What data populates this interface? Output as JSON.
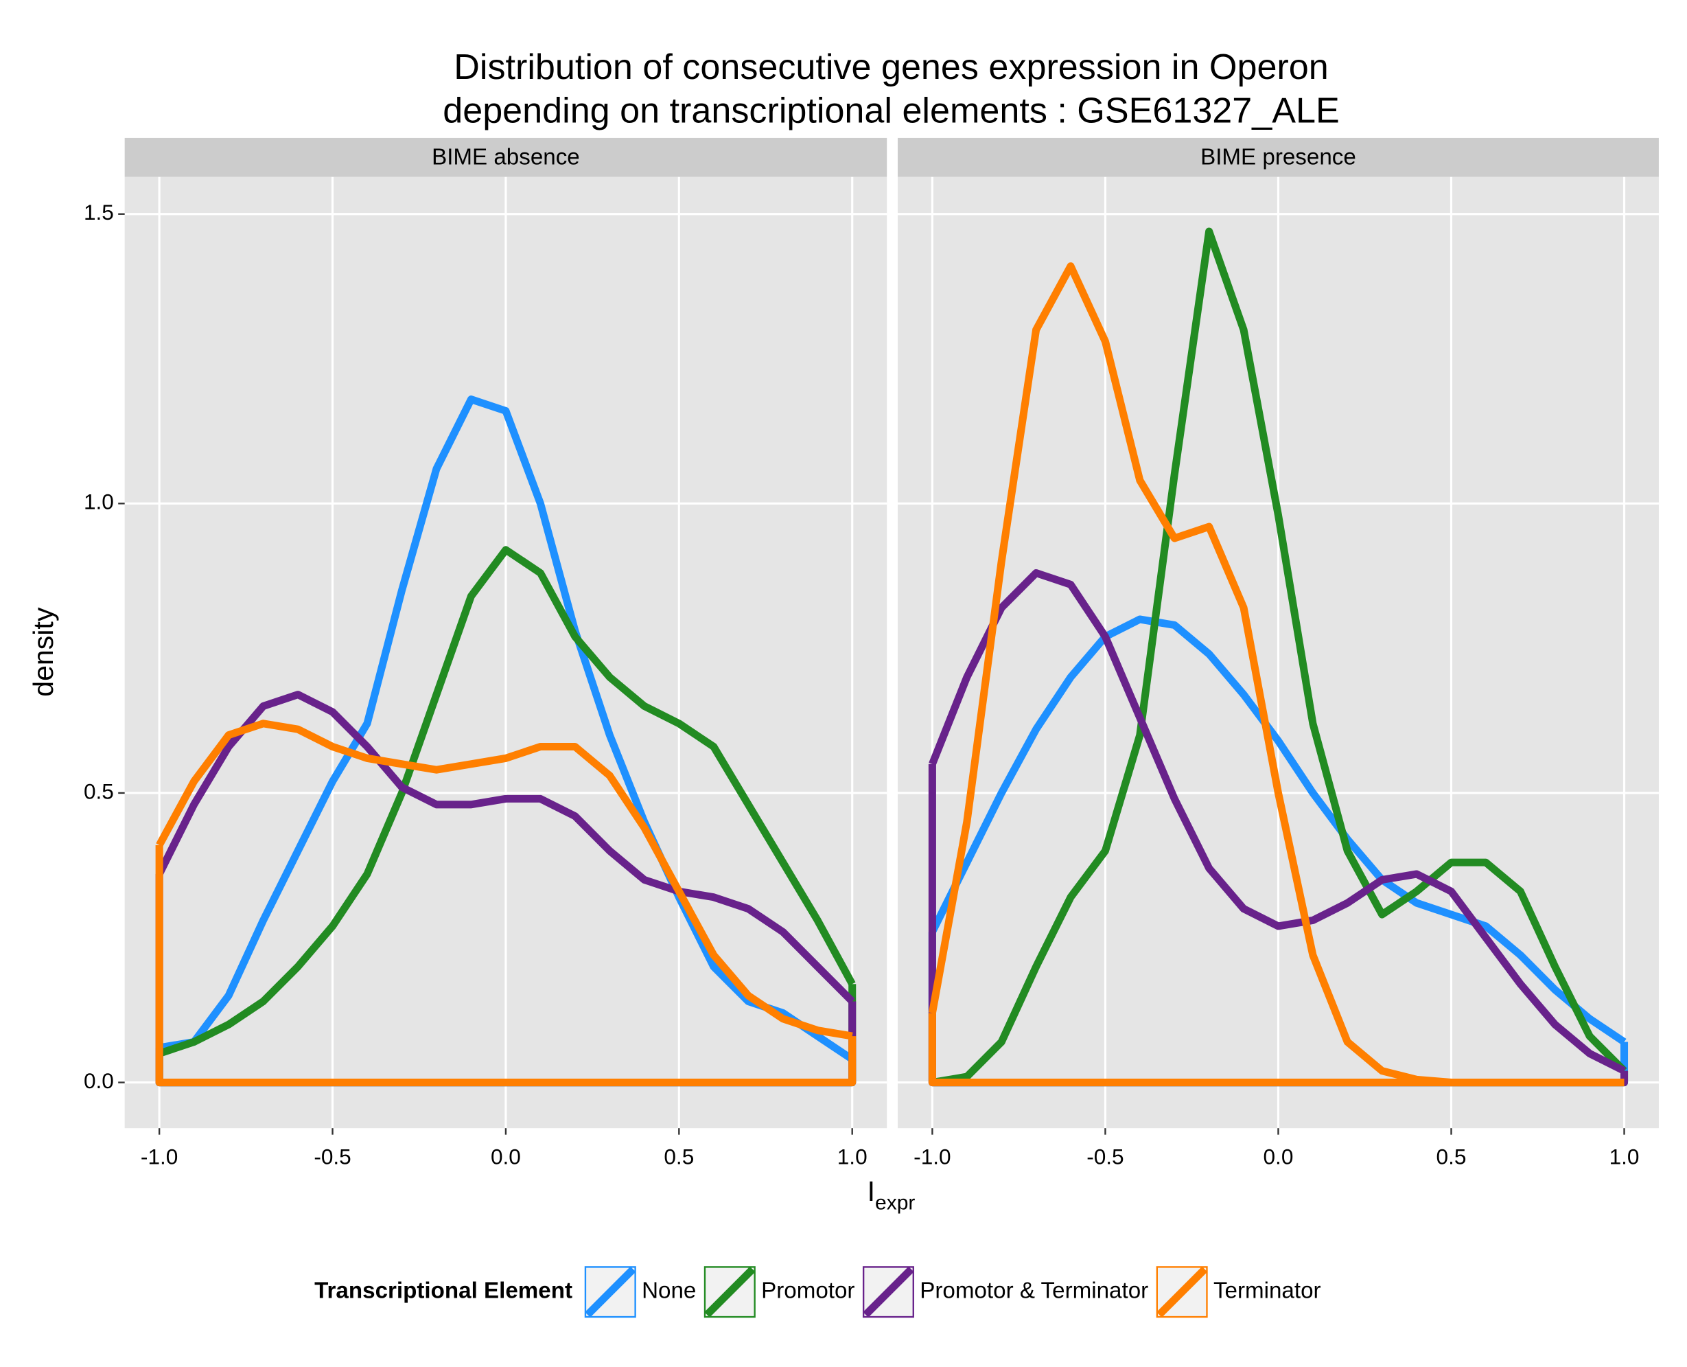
{
  "title": [
    "Distribution of consecutive genes expression in Operon",
    "depending on transcriptional elements : GSE61327_ALE"
  ],
  "x_label": "I",
  "x_label_subscript": "expr",
  "y_label": "density",
  "legend_title": "Transcriptional Element",
  "legend_position": "bottom",
  "chart_data": [
    {
      "type": "density",
      "title": "BIME absence",
      "x": [
        -1,
        -0.9,
        -0.8,
        -0.7,
        -0.6,
        -0.5,
        -0.4,
        -0.3,
        -0.2,
        -0.1,
        0,
        0.1,
        0.2,
        0.3,
        0.4,
        0.5,
        0.6,
        0.7,
        0.8,
        0.9,
        1
      ],
      "xlim": [
        -1.1,
        1.1
      ],
      "ylim": [
        -0.079,
        1.564
      ],
      "grid": true,
      "xticks": [
        {
          "value": -1,
          "label": "-1.0"
        },
        {
          "value": -0.5,
          "label": "-0.5"
        },
        {
          "value": 0,
          "label": "0.0"
        },
        {
          "value": 0.5,
          "label": "0.5"
        },
        {
          "value": 1,
          "label": "1.0"
        }
      ],
      "yticks": [
        {
          "value": 0,
          "label": "0.0"
        },
        {
          "value": 0.5,
          "label": "0.5"
        },
        {
          "value": 1,
          "label": "1.0"
        },
        {
          "value": 1.5,
          "label": "1.5"
        }
      ],
      "series": [
        {
          "name": "None",
          "color": "#1e90ff",
          "values": [
            0.06,
            0.07,
            0.15,
            0.28,
            0.4,
            0.52,
            0.62,
            0.85,
            1.06,
            1.18,
            1.16,
            1.0,
            0.78,
            0.6,
            0.45,
            0.32,
            0.2,
            0.14,
            0.12,
            0.08,
            0.04
          ]
        },
        {
          "name": "Promotor",
          "color": "#228b22",
          "values": [
            0.05,
            0.07,
            0.1,
            0.14,
            0.2,
            0.27,
            0.36,
            0.5,
            0.67,
            0.84,
            0.92,
            0.88,
            0.77,
            0.7,
            0.65,
            0.62,
            0.58,
            0.48,
            0.38,
            0.28,
            0.17
          ]
        },
        {
          "name": "Promotor & Terminator",
          "color": "#68228b",
          "values": [
            0.36,
            0.48,
            0.58,
            0.65,
            0.67,
            0.64,
            0.58,
            0.51,
            0.48,
            0.48,
            0.49,
            0.49,
            0.46,
            0.4,
            0.35,
            0.33,
            0.32,
            0.3,
            0.26,
            0.2,
            0.14
          ]
        },
        {
          "name": "Terminator",
          "color": "#ff7f00",
          "values": [
            0.41,
            0.52,
            0.6,
            0.62,
            0.61,
            0.58,
            0.56,
            0.55,
            0.54,
            0.55,
            0.56,
            0.58,
            0.58,
            0.53,
            0.44,
            0.33,
            0.22,
            0.15,
            0.11,
            0.09,
            0.08
          ]
        }
      ]
    },
    {
      "type": "density",
      "title": "BIME presence",
      "x": [
        -1,
        -0.9,
        -0.8,
        -0.7,
        -0.6,
        -0.5,
        -0.4,
        -0.3,
        -0.2,
        -0.1,
        0,
        0.1,
        0.2,
        0.3,
        0.4,
        0.5,
        0.6,
        0.7,
        0.8,
        0.9,
        1
      ],
      "xlim": [
        -1.1,
        1.1
      ],
      "ylim": [
        -0.079,
        1.564
      ],
      "grid": true,
      "xticks": [
        {
          "value": -1,
          "label": "-1.0"
        },
        {
          "value": -0.5,
          "label": "-0.5"
        },
        {
          "value": 0,
          "label": "0.0"
        },
        {
          "value": 0.5,
          "label": "0.5"
        },
        {
          "value": 1,
          "label": "1.0"
        }
      ],
      "yticks": [
        0,
        0.5,
        1,
        1.5
      ],
      "series": [
        {
          "name": "None",
          "color": "#1e90ff",
          "values": [
            0.26,
            0.38,
            0.5,
            0.61,
            0.7,
            0.77,
            0.8,
            0.79,
            0.74,
            0.67,
            0.59,
            0.5,
            0.42,
            0.35,
            0.31,
            0.29,
            0.27,
            0.22,
            0.16,
            0.11,
            0.07
          ]
        },
        {
          "name": "Promotor",
          "color": "#228b22",
          "values": [
            0,
            0.01,
            0.07,
            0.2,
            0.32,
            0.4,
            0.6,
            1.05,
            1.47,
            1.3,
            0.98,
            0.62,
            0.4,
            0.29,
            0.33,
            0.38,
            0.38,
            0.33,
            0.2,
            0.08,
            0.02
          ]
        },
        {
          "name": "Promotor & Terminator",
          "color": "#68228b",
          "values": [
            0.55,
            0.7,
            0.82,
            0.88,
            0.86,
            0.77,
            0.63,
            0.49,
            0.37,
            0.3,
            0.27,
            0.28,
            0.31,
            0.35,
            0.36,
            0.33,
            0.25,
            0.17,
            0.1,
            0.05,
            0.02
          ]
        },
        {
          "name": "Terminator",
          "color": "#ff7f00",
          "values": [
            0.12,
            0.45,
            0.9,
            1.3,
            1.41,
            1.28,
            1.04,
            0.94,
            0.96,
            0.82,
            0.5,
            0.22,
            0.07,
            0.02,
            0.005,
            0,
            0,
            0,
            0,
            0,
            0
          ]
        }
      ]
    }
  ]
}
